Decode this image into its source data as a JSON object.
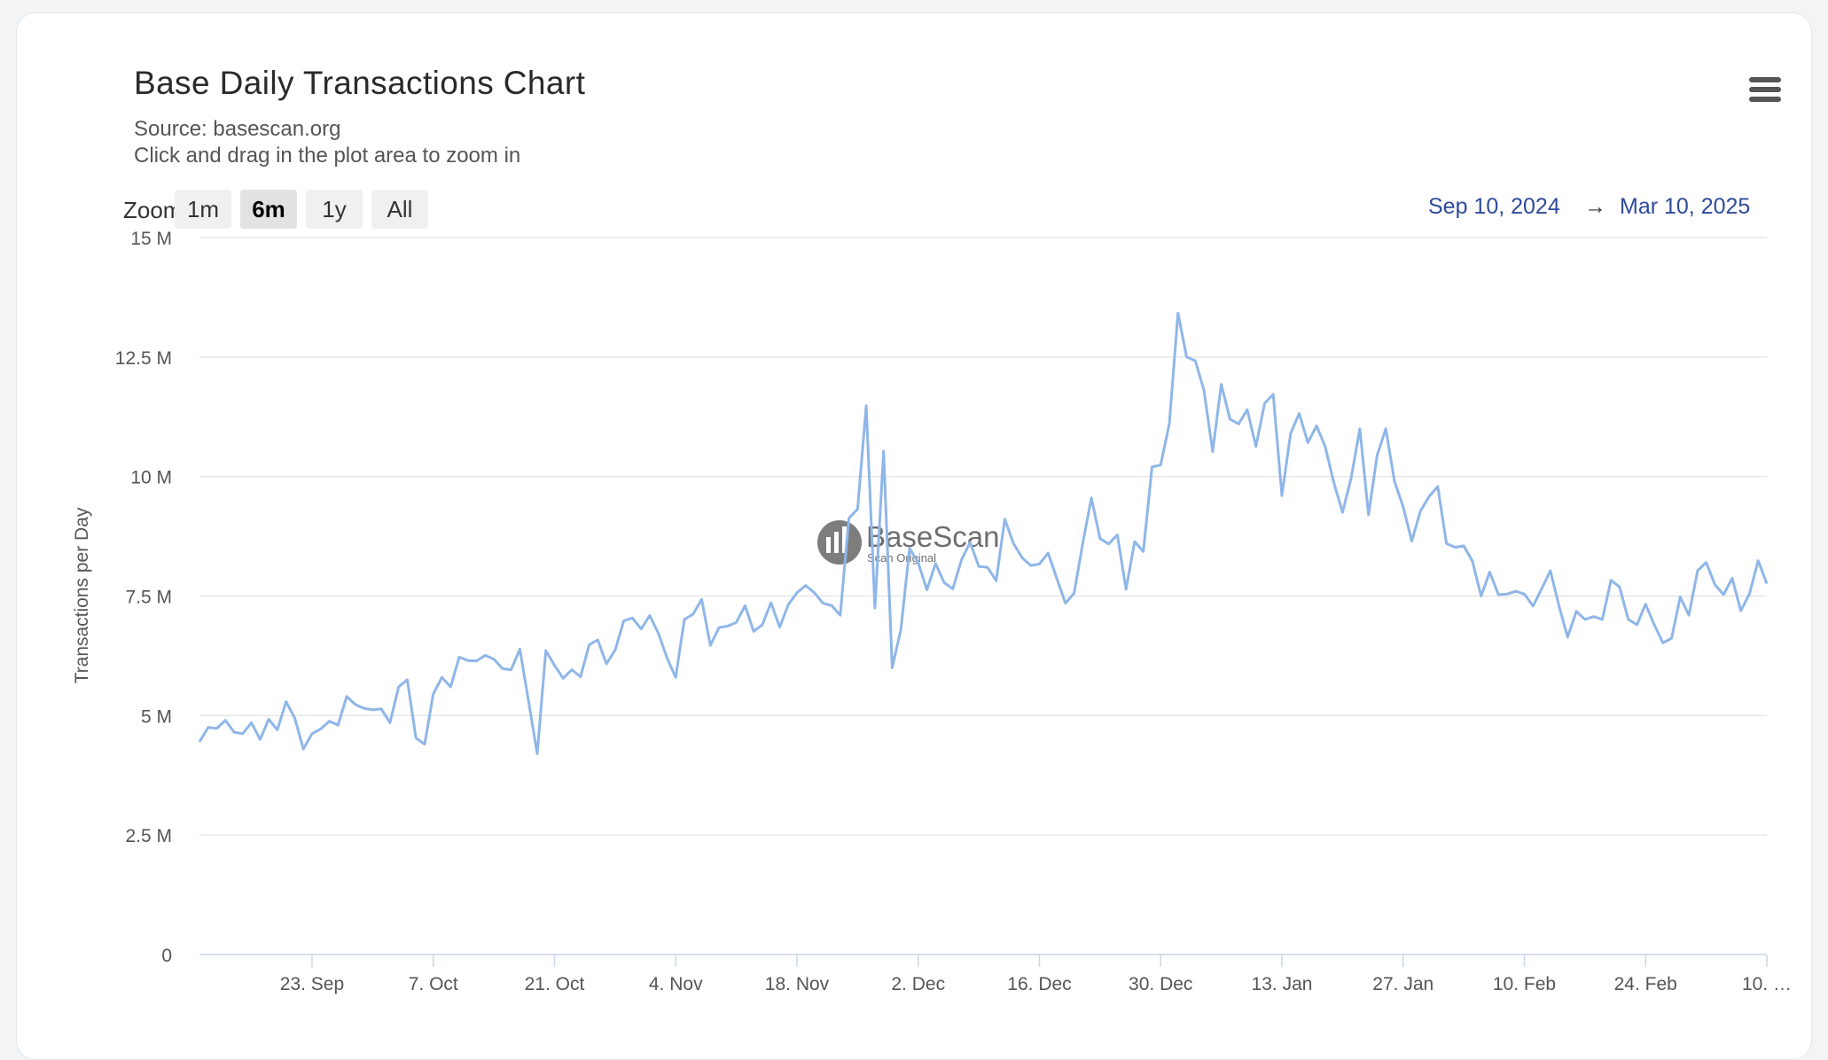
{
  "toolbar": {
    "zoom_label": "Zoom",
    "buttons": [
      {
        "label": "1m",
        "active": false
      },
      {
        "label": "6m",
        "active": true
      },
      {
        "label": "1y",
        "active": false
      },
      {
        "label": "All",
        "active": false
      }
    ],
    "range_from": "Sep 10, 2024",
    "range_arrow": "→",
    "range_to": "Mar 10, 2025"
  },
  "menu_icon": "hamburger-menu-icon",
  "watermark": {
    "name": "BaseScan",
    "tagline": "Scan Original"
  },
  "colors": {
    "line": "#8fb6e8",
    "grid": "#e6e6e6",
    "range_text": "#2f4a9c"
  },
  "chart_data": {
    "type": "line",
    "title": "Base Daily Transactions Chart",
    "subtitle": [
      "Source: basescan.org",
      "Click and drag in the plot area to zoom in"
    ],
    "xlabel": "",
    "ylabel": "Transactions per Day",
    "ylim": [
      0,
      15000000
    ],
    "y_ticks": [
      {
        "value": 0,
        "label": "0"
      },
      {
        "value": 2500000,
        "label": "2.5 M"
      },
      {
        "value": 5000000,
        "label": "5 M"
      },
      {
        "value": 7500000,
        "label": "7.5 M"
      },
      {
        "value": 10000000,
        "label": "10 M"
      },
      {
        "value": 12500000,
        "label": "12.5 M"
      },
      {
        "value": 15000000,
        "label": "15 M"
      }
    ],
    "xlim": [
      "2024-09-10",
      "2025-03-10"
    ],
    "x_ticks": [
      {
        "date": "2024-09-23",
        "label": "23. Sep"
      },
      {
        "date": "2024-10-07",
        "label": "7. Oct"
      },
      {
        "date": "2024-10-21",
        "label": "21. Oct"
      },
      {
        "date": "2024-11-04",
        "label": "4. Nov"
      },
      {
        "date": "2024-11-18",
        "label": "18. Nov"
      },
      {
        "date": "2024-12-02",
        "label": "2. Dec"
      },
      {
        "date": "2024-12-16",
        "label": "16. Dec"
      },
      {
        "date": "2024-12-30",
        "label": "30. Dec"
      },
      {
        "date": "2025-01-13",
        "label": "13. Jan"
      },
      {
        "date": "2025-01-27",
        "label": "27. Jan"
      },
      {
        "date": "2025-02-10",
        "label": "10. Feb"
      },
      {
        "date": "2025-02-24",
        "label": "24. Feb"
      },
      {
        "date": "2025-03-10",
        "label": "10. …"
      }
    ],
    "grid": true,
    "legend": "none",
    "series": [
      {
        "start_date": "2024-09-10",
        "interval": "1 day",
        "values": [
          4450000,
          4750000,
          4730000,
          4900000,
          4650000,
          4620000,
          4850000,
          4500000,
          4920000,
          4700000,
          5290000,
          4950000,
          4300000,
          4620000,
          4720000,
          4880000,
          4800000,
          5400000,
          5230000,
          5150000,
          5120000,
          5140000,
          4850000,
          5600000,
          5750000,
          4530000,
          4400000,
          5450000,
          5800000,
          5600000,
          6220000,
          6150000,
          6140000,
          6260000,
          6180000,
          5980000,
          5960000,
          6390000,
          5300000,
          4200000,
          6360000,
          6050000,
          5780000,
          5960000,
          5810000,
          6480000,
          6580000,
          6080000,
          6370000,
          6980000,
          7040000,
          6810000,
          7090000,
          6720000,
          6200000,
          5800000,
          7010000,
          7120000,
          7430000,
          6470000,
          6840000,
          6870000,
          6950000,
          7300000,
          6760000,
          6900000,
          7360000,
          6850000,
          7320000,
          7570000,
          7720000,
          7570000,
          7350000,
          7300000,
          7100000,
          9130000,
          9320000,
          11480000,
          7250000,
          10530000,
          6000000,
          6800000,
          8500000,
          8200000,
          7630000,
          8180000,
          7780000,
          7650000,
          8260000,
          8620000,
          8120000,
          8100000,
          7820000,
          9110000,
          8600000,
          8300000,
          8140000,
          8170000,
          8400000,
          7870000,
          7350000,
          7560000,
          8600000,
          9550000,
          8700000,
          8590000,
          8780000,
          7640000,
          8640000,
          8430000,
          10200000,
          10240000,
          11100000,
          13420000,
          12500000,
          12420000,
          11800000,
          10520000,
          11930000,
          11200000,
          11100000,
          11400000,
          10630000,
          11530000,
          11720000,
          9600000,
          10900000,
          11320000,
          10710000,
          11060000,
          10630000,
          9870000,
          9250000,
          9970000,
          11000000,
          9200000,
          10440000,
          11000000,
          9900000,
          9370000,
          8650000,
          9280000,
          9580000,
          9790000,
          8600000,
          8520000,
          8550000,
          8230000,
          7500000,
          8000000,
          7530000,
          7540000,
          7600000,
          7540000,
          7290000,
          7650000,
          8030000,
          7290000,
          6640000,
          7180000,
          7010000,
          7070000,
          7010000,
          7830000,
          7690000,
          7010000,
          6900000,
          7330000,
          6900000,
          6520000,
          6620000,
          7480000,
          7100000,
          8030000,
          8200000,
          7740000,
          7530000,
          7870000,
          7190000,
          7550000,
          8240000,
          7760000
        ]
      }
    ]
  }
}
